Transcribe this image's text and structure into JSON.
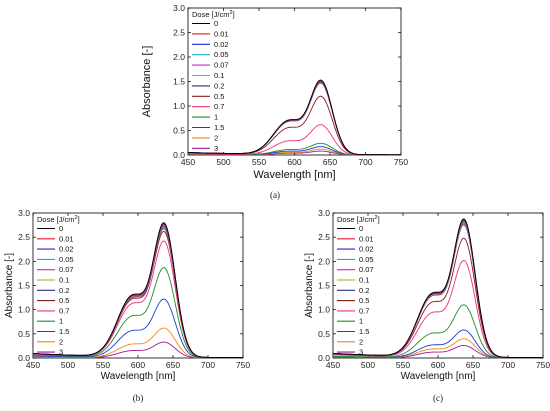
{
  "chart_data": [
    {
      "type": "line",
      "panel_label": "(a)",
      "xlabel": "Wavelength [nm]",
      "ylabel": "Absorbance [-]",
      "xlim": [
        450,
        750
      ],
      "ylim": [
        0,
        3.0
      ],
      "xticks": [
        "450",
        "500",
        "550",
        "600",
        "650",
        "700",
        "750"
      ],
      "yticks": [
        "0.0",
        "0.5",
        "1.0",
        "1.5",
        "2.0",
        "2.5",
        "3.0"
      ],
      "legend_title": "Dose [J/cm²]",
      "legend_title_main": "Dose [J/cm",
      "legend_title_sup": "2",
      "legend_title_end": "]",
      "legend_position": "top-left",
      "series": [
        {
          "name": "0",
          "color": "#000000",
          "peak": 1.53
        },
        {
          "name": "0.01",
          "color": "#e8172a",
          "peak": 1.51
        },
        {
          "name": "0.02",
          "color": "#1f27d6",
          "peak": 1.5
        },
        {
          "name": "0.05",
          "color": "#19b0c8",
          "peak": 1.49
        },
        {
          "name": "0.07",
          "color": "#e51ed6",
          "peak": 1.49
        },
        {
          "name": "0.1",
          "color": "#a8a81a",
          "peak": 1.48
        },
        {
          "name": "0.2",
          "color": "#2b2e8c",
          "peak": 1.47
        },
        {
          "name": "0.5",
          "color": "#8b1a1a",
          "peak": 1.2
        },
        {
          "name": "0.7",
          "color": "#f0307f",
          "peak": 0.62
        },
        {
          "name": "1",
          "color": "#1a8f2a",
          "peak": 0.24
        },
        {
          "name": "1.5",
          "color": "#1a3ccf",
          "peak": 0.17
        },
        {
          "name": "2",
          "color": "#ee8a12",
          "peak": 0.12
        },
        {
          "name": "3",
          "color": "#a01a9a",
          "peak": 0.08
        }
      ]
    },
    {
      "type": "line",
      "panel_label": "(b)",
      "xlabel": "Wavelength [nm]",
      "ylabel": "Absorbance [-]",
      "xlim": [
        450,
        750
      ],
      "ylim": [
        0,
        3.0
      ],
      "xticks": [
        "450",
        "500",
        "550",
        "600",
        "650",
        "700",
        "750"
      ],
      "yticks": [
        "0.0",
        "0.5",
        "1.0",
        "1.5",
        "2.0",
        "2.5",
        "3.0"
      ],
      "legend_title": "Dose [J/cm²]",
      "legend_title_main": "Dose [J/cm",
      "legend_title_sup": "2",
      "legend_title_end": "]",
      "legend_position": "top-left",
      "series": [
        {
          "name": "0",
          "color": "#000000",
          "peak": 2.8
        },
        {
          "name": "0.01",
          "color": "#e8172a",
          "peak": 2.78
        },
        {
          "name": "0.02",
          "color": "#1f27d6",
          "peak": 2.76
        },
        {
          "name": "0.05",
          "color": "#19b0c8",
          "peak": 2.74
        },
        {
          "name": "0.07",
          "color": "#e51ed6",
          "peak": 2.72
        },
        {
          "name": "0.1",
          "color": "#a8a81a",
          "peak": 2.7
        },
        {
          "name": "0.2",
          "color": "#2b2e8c",
          "peak": 2.68
        },
        {
          "name": "0.5",
          "color": "#8b1a1a",
          "peak": 2.62
        },
        {
          "name": "0.7",
          "color": "#f0307f",
          "peak": 2.42
        },
        {
          "name": "1",
          "color": "#1a8f2a",
          "peak": 1.87
        },
        {
          "name": "1.5",
          "color": "#1a3ccf",
          "peak": 1.22
        },
        {
          "name": "2",
          "color": "#ee8a12",
          "peak": 0.62
        },
        {
          "name": "3",
          "color": "#a01a9a",
          "peak": 0.33
        }
      ]
    },
    {
      "type": "line",
      "panel_label": "(c)",
      "xlabel": "Wavelength [nm]",
      "ylabel": "Absorbance [-]",
      "xlim": [
        450,
        750
      ],
      "ylim": [
        0,
        3.0
      ],
      "xticks": [
        "450",
        "500",
        "550",
        "600",
        "650",
        "700",
        "750"
      ],
      "yticks": [
        "0.0",
        "0.5",
        "1.0",
        "1.5",
        "2.0",
        "2.5",
        "3.0"
      ],
      "legend_title": "Dose [J/cm²]",
      "legend_title_main": "Dose [J/cm",
      "legend_title_sup": "2",
      "legend_title_end": "]",
      "legend_position": "top-left",
      "series": [
        {
          "name": "0",
          "color": "#000000",
          "peak": 2.88
        },
        {
          "name": "0.01",
          "color": "#e8172a",
          "peak": 2.86
        },
        {
          "name": "0.02",
          "color": "#1f27d6",
          "peak": 2.84
        },
        {
          "name": "0.05",
          "color": "#19b0c8",
          "peak": 2.82
        },
        {
          "name": "0.07",
          "color": "#e51ed6",
          "peak": 2.8
        },
        {
          "name": "0.1",
          "color": "#a8a81a",
          "peak": 2.78
        },
        {
          "name": "0.2",
          "color": "#2b2e8c",
          "peak": 2.76
        },
        {
          "name": "0.5",
          "color": "#8b1a1a",
          "peak": 2.48
        },
        {
          "name": "0.7",
          "color": "#f0307f",
          "peak": 2.02
        },
        {
          "name": "1",
          "color": "#1a8f2a",
          "peak": 1.1
        },
        {
          "name": "1.5",
          "color": "#1a3ccf",
          "peak": 0.58
        },
        {
          "name": "2",
          "color": "#ee8a12",
          "peak": 0.4
        },
        {
          "name": "3",
          "color": "#a01a9a",
          "peak": 0.26
        }
      ]
    }
  ]
}
